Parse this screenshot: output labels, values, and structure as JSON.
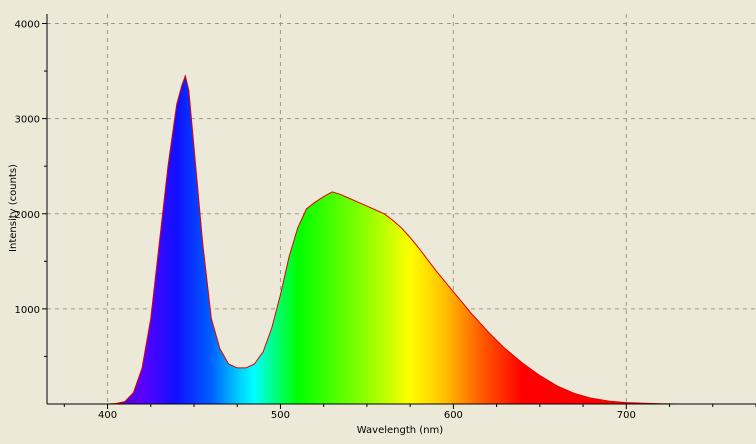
{
  "chart_data": {
    "type": "area",
    "title": "",
    "xlabel": "Wavelength (nm)",
    "ylabel": "Intensity (counts)",
    "xlim": [
      365,
      775
    ],
    "ylim": [
      0,
      4100
    ],
    "x_ticks": [
      400,
      500,
      600,
      700
    ],
    "y_ticks": [
      1000,
      2000,
      3000,
      4000
    ],
    "grid": true,
    "line_color": "#e00000",
    "series": [
      {
        "x": [
          400,
          405,
          410,
          415,
          420,
          425,
          430,
          435,
          440,
          443,
          445,
          447,
          450,
          455,
          460,
          465,
          470,
          475,
          480,
          485,
          490,
          495,
          500,
          505,
          510,
          515,
          520,
          525,
          530,
          535,
          540,
          545,
          550,
          555,
          560,
          565,
          570,
          575,
          580,
          585,
          590,
          595,
          600,
          605,
          610,
          615,
          620,
          625,
          630,
          640,
          650,
          660,
          670,
          680,
          690,
          700,
          710,
          720,
          730
        ],
        "values": [
          0,
          5,
          25,
          120,
          380,
          900,
          1700,
          2500,
          3150,
          3350,
          3450,
          3300,
          2700,
          1700,
          900,
          580,
          420,
          380,
          380,
          420,
          550,
          800,
          1150,
          1550,
          1850,
          2050,
          2120,
          2180,
          2230,
          2200,
          2160,
          2120,
          2080,
          2040,
          2000,
          1930,
          1850,
          1750,
          1640,
          1520,
          1400,
          1290,
          1180,
          1070,
          960,
          860,
          760,
          670,
          580,
          430,
          300,
          190,
          110,
          60,
          30,
          15,
          8,
          3,
          0
        ]
      }
    ]
  }
}
